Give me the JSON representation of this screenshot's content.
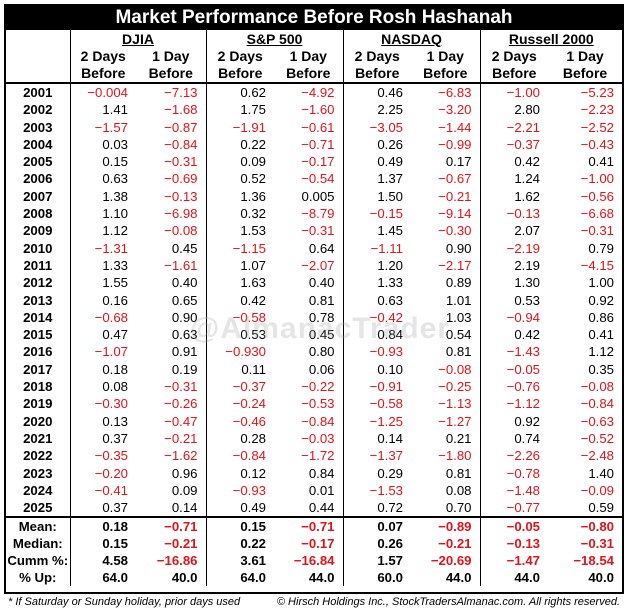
{
  "title": "Market Performance Before Rosh Hashanah",
  "groups": [
    "DJIA",
    "S&P 500",
    "NASDAQ",
    "Russell 2000"
  ],
  "subheads": {
    "line1": [
      "2 Days",
      "1 Day",
      "2 Days",
      "1 Day",
      "2 Days",
      "1 Day",
      "2 Days",
      "1 Day"
    ],
    "line2": [
      "Before",
      "Before",
      "Before",
      "Before",
      "Before",
      "Before",
      "Before",
      "Before"
    ]
  },
  "rows": [
    {
      "year": "2001",
      "values": [
        "−0.004",
        "−7.13",
        "0.62",
        "−4.92",
        "0.46",
        "−6.83",
        "−1.00",
        "−5.23"
      ]
    },
    {
      "year": "2002",
      "values": [
        "1.41",
        "−1.68",
        "1.75",
        "−1.60",
        "2.25",
        "−3.20",
        "2.80",
        "−2.23"
      ]
    },
    {
      "year": "2003",
      "values": [
        "−1.57",
        "−0.87",
        "−1.91",
        "−0.61",
        "−3.05",
        "−1.44",
        "−2.21",
        "−2.52"
      ]
    },
    {
      "year": "2004",
      "values": [
        "0.03",
        "−0.84",
        "0.22",
        "−0.71",
        "0.26",
        "−0.99",
        "−0.37",
        "−0.43"
      ]
    },
    {
      "year": "2005",
      "values": [
        "0.15",
        "−0.31",
        "0.09",
        "−0.17",
        "0.49",
        "0.17",
        "0.42",
        "0.41"
      ]
    },
    {
      "year": "2006",
      "values": [
        "0.63",
        "−0.69",
        "0.52",
        "−0.54",
        "1.37",
        "−0.67",
        "1.24",
        "−1.00"
      ]
    },
    {
      "year": "2007",
      "values": [
        "1.38",
        "−0.13",
        "1.36",
        "0.005",
        "1.50",
        "−0.21",
        "1.62",
        "−0.56"
      ]
    },
    {
      "year": "2008",
      "values": [
        "1.10",
        "−6.98",
        "0.32",
        "−8.79",
        "−0.15",
        "−9.14",
        "−0.13",
        "−6.68"
      ]
    },
    {
      "year": "2009",
      "values": [
        "1.12",
        "−0.08",
        "1.53",
        "−0.31",
        "1.45",
        "−0.30",
        "2.07",
        "−0.31"
      ]
    },
    {
      "year": "2010",
      "values": [
        "−1.31",
        "0.45",
        "−1.15",
        "0.64",
        "−1.11",
        "0.90",
        "−2.19",
        "0.79"
      ]
    },
    {
      "year": "2011",
      "values": [
        "1.33",
        "−1.61",
        "1.07",
        "−2.07",
        "1.20",
        "−2.17",
        "2.19",
        "−4.15"
      ]
    },
    {
      "year": "2012",
      "values": [
        "1.55",
        "0.40",
        "1.63",
        "0.40",
        "1.33",
        "0.89",
        "1.30",
        "1.00"
      ]
    },
    {
      "year": "2013",
      "values": [
        "0.16",
        "0.65",
        "0.42",
        "0.81",
        "0.63",
        "1.01",
        "0.53",
        "0.92"
      ]
    },
    {
      "year": "2014",
      "values": [
        "−0.68",
        "0.90",
        "−0.58",
        "0.78",
        "−0.42",
        "1.03",
        "−0.94",
        "0.86"
      ]
    },
    {
      "year": "2015",
      "values": [
        "0.47",
        "0.63",
        "0.53",
        "0.45",
        "0.84",
        "0.54",
        "0.42",
        "0.41"
      ]
    },
    {
      "year": "2016",
      "values": [
        "−1.07",
        "0.91",
        "−0.930",
        "0.80",
        "−0.93",
        "0.81",
        "−1.43",
        "1.12"
      ]
    },
    {
      "year": "2017",
      "values": [
        "0.18",
        "0.19",
        "0.11",
        "0.06",
        "0.10",
        "−0.08",
        "−0.05",
        "0.35"
      ]
    },
    {
      "year": "2018",
      "values": [
        "0.08",
        "−0.31",
        "−0.37",
        "−0.22",
        "−0.91",
        "−0.25",
        "−0.76",
        "−0.08"
      ]
    },
    {
      "year": "2019",
      "values": [
        "−0.30",
        "−0.26",
        "−0.24",
        "−0.53",
        "−0.58",
        "−1.13",
        "−1.12",
        "−0.84"
      ]
    },
    {
      "year": "2020",
      "values": [
        "0.13",
        "−0.47",
        "−0.46",
        "−0.84",
        "−1.25",
        "−1.27",
        "0.92",
        "−0.63"
      ]
    },
    {
      "year": "2021",
      "values": [
        "0.37",
        "−0.21",
        "0.28",
        "−0.03",
        "0.14",
        "0.21",
        "0.74",
        "−0.52"
      ]
    },
    {
      "year": "2022",
      "values": [
        "−0.35",
        "−1.62",
        "−0.84",
        "−1.72",
        "−1.37",
        "−1.80",
        "−2.26",
        "−2.48"
      ]
    },
    {
      "year": "2023",
      "values": [
        "−0.20",
        "0.96",
        "0.12",
        "0.84",
        "0.29",
        "0.81",
        "−0.78",
        "1.40"
      ]
    },
    {
      "year": "2024",
      "values": [
        "−0.41",
        "0.09",
        "−0.93",
        "0.01",
        "−1.53",
        "0.08",
        "−1.48",
        "−0.09"
      ]
    },
    {
      "year": "2025",
      "values": [
        "0.37",
        "0.14",
        "0.49",
        "0.44",
        "0.72",
        "0.70",
        "−0.77",
        "0.59"
      ]
    }
  ],
  "summary": [
    {
      "label": "Mean:",
      "values": [
        "0.18",
        "−0.71",
        "0.15",
        "−0.71",
        "0.07",
        "−0.89",
        "−0.05",
        "−0.80"
      ]
    },
    {
      "label": "Median:",
      "values": [
        "0.15",
        "−0.21",
        "0.22",
        "−0.17",
        "0.26",
        "−0.21",
        "−0.13",
        "−0.31"
      ]
    },
    {
      "label": "Cumm %:",
      "values": [
        "4.58",
        "−16.86",
        "3.61",
        "−16.84",
        "1.57",
        "−20.69",
        "−1.47",
        "−18.54"
      ]
    },
    {
      "label": "% Up:",
      "values": [
        "64.0",
        "40.0",
        "64.0",
        "44.0",
        "60.0",
        "44.0",
        "44.0",
        "40.0"
      ]
    }
  ],
  "footer": {
    "left": "* If Saturday or Sunday holiday, prior days used",
    "right": "© Hirsch Holdings Inc., StockTradersAlmanac.com. All rights reserved."
  },
  "watermark": "@AlmanacTrader",
  "colors": {
    "negative": "#e0141b",
    "positive": "#000000",
    "header_bg": "#000000"
  }
}
